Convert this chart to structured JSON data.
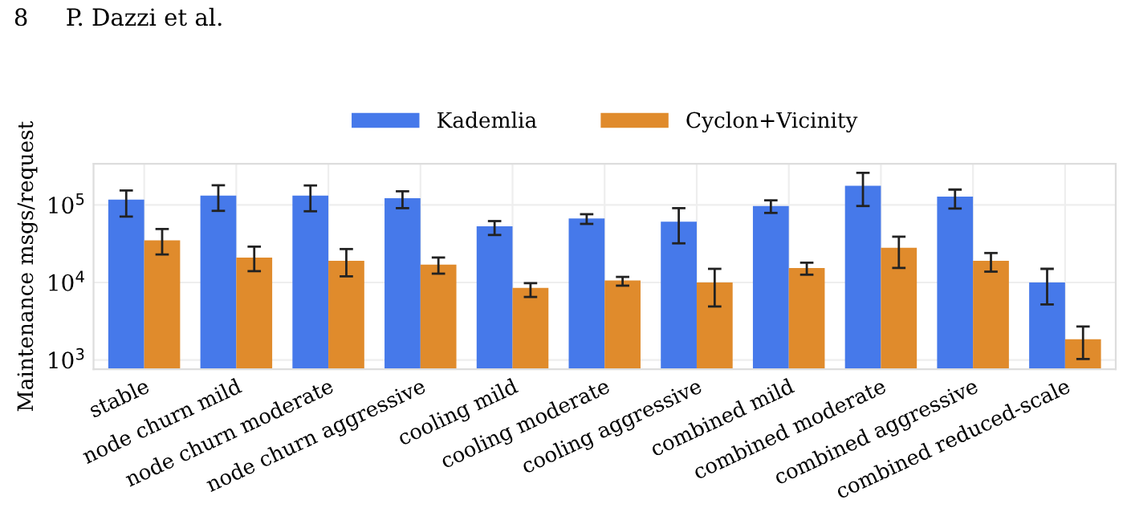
{
  "chart_data": {
    "type": "bar",
    "annotations": [
      "8     P. Dazzi et al."
    ],
    "ylabel": "Maintenance msgs/request",
    "categories": [
      "stable",
      "node churn mild",
      "node churn moderate",
      "node churn aggressive",
      "cooling mild",
      "cooling moderate",
      "cooling aggressive",
      "combined mild",
      "combined moderate",
      "combined aggressive",
      "combined reduced-scale"
    ],
    "series": [
      {
        "name": "Kademlia",
        "color": "#4679ea",
        "values": [
          117000,
          132000,
          132000,
          122000,
          53000,
          67000,
          61000,
          97000,
          177000,
          128000,
          10000
        ],
        "errors": [
          [
            71000,
            154000
          ],
          [
            84000,
            180000
          ],
          [
            83000,
            179000
          ],
          [
            91000,
            150000
          ],
          [
            41000,
            62000
          ],
          [
            57000,
            76000
          ],
          [
            32000,
            91000
          ],
          [
            79000,
            115000
          ],
          [
            97000,
            260000
          ],
          [
            90000,
            158000
          ],
          [
            5200,
            15000
          ]
        ]
      },
      {
        "name": "Cyclon+Vicinity",
        "color": "#e08b2c",
        "values": [
          35000,
          21000,
          19000,
          17000,
          8500,
          10600,
          10000,
          15400,
          28000,
          19000,
          1850
        ],
        "errors": [
          [
            23000,
            49000
          ],
          [
            14000,
            29000
          ],
          [
            12000,
            27000
          ],
          [
            13000,
            21000
          ],
          [
            6500,
            9800
          ],
          [
            9100,
            11800
          ],
          [
            4900,
            15000
          ],
          [
            12600,
            18000
          ],
          [
            15400,
            39000
          ],
          [
            13800,
            24000
          ],
          [
            1030,
            2700
          ]
        ]
      }
    ],
    "log": true,
    "ylim": [
      760,
      340000
    ],
    "yticks": [
      {
        "value": 1000,
        "label": "10$^{3}$"
      },
      {
        "value": 10000,
        "label": "10$^{4}$"
      },
      {
        "value": 100000,
        "label": "10$^{5}$"
      }
    ],
    "grid": true,
    "legend": "top"
  }
}
